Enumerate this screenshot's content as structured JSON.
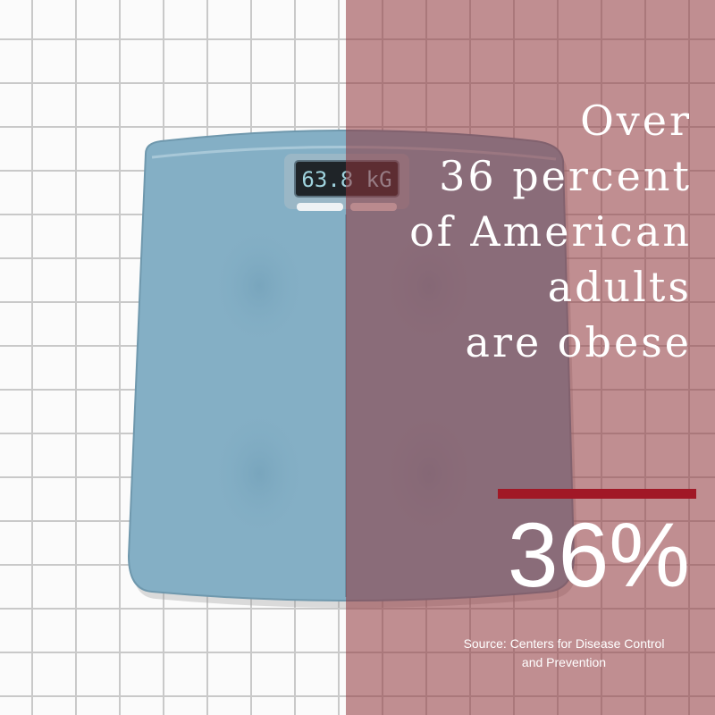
{
  "scale": {
    "display_reading": "63.8 kG"
  },
  "headline": {
    "lines": [
      "Over",
      "36 percent",
      "of American",
      "adults",
      "are obese"
    ]
  },
  "stat": {
    "value": "36%"
  },
  "source": {
    "line1": "Source: Centers for Disease Control",
    "line2": "and Prevention"
  },
  "colors": {
    "overlay": "#8f343a",
    "accent": "#a11826",
    "scale_body": "#84afc5",
    "tile_grout": "#c9c9c9"
  }
}
